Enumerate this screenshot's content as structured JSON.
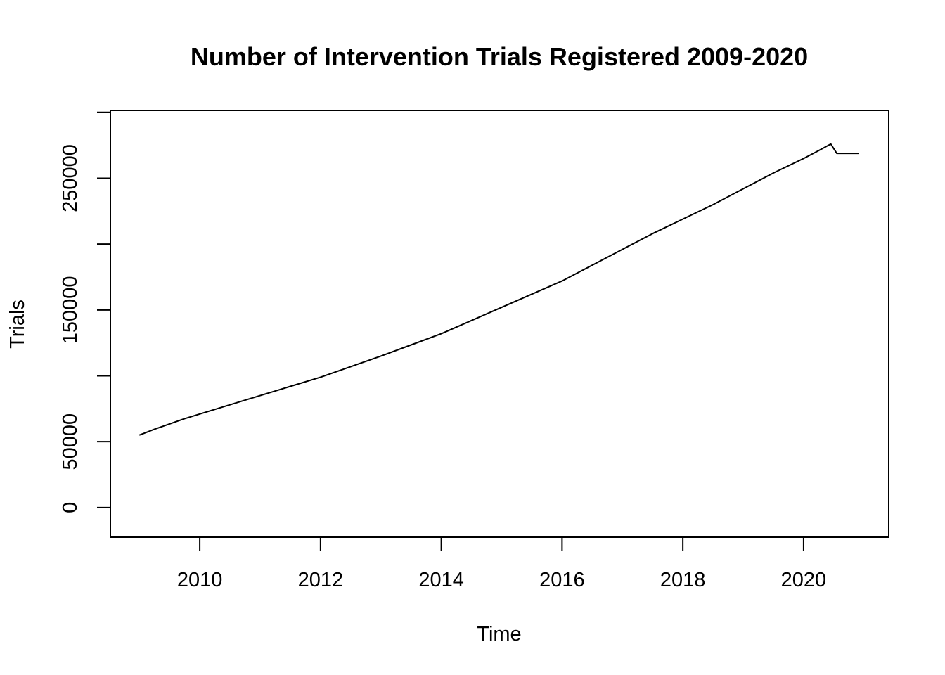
{
  "chart_data": {
    "type": "line",
    "title": "Number of Intervention Trials Registered 2009-2020",
    "xlabel": "Time",
    "ylabel": "Trials",
    "xlim": [
      2008.52,
      2021.41
    ],
    "ylim": [
      -22500,
      301500
    ],
    "x_ticks": [
      2010,
      2012,
      2014,
      2016,
      2018,
      2020
    ],
    "y_ticks": [
      0,
      50000,
      100000,
      150000,
      200000,
      250000,
      300000
    ],
    "y_tick_labels": [
      "0",
      "50000",
      "",
      "150000",
      "",
      "250000",
      ""
    ],
    "grid": false,
    "legend": "none",
    "line_color": "#000000",
    "series": [
      {
        "x": [
          2009.0,
          2009.25,
          2009.5,
          2009.75,
          2010.0,
          2010.5,
          2011.0,
          2011.5,
          2012.0,
          2012.5,
          2013.0,
          2013.5,
          2014.0,
          2014.5,
          2015.0,
          2015.5,
          2016.0,
          2016.5,
          2017.0,
          2017.5,
          2018.0,
          2018.5,
          2019.0,
          2019.5,
          2020.0,
          2020.25,
          2020.45,
          2020.55,
          2020.92
        ],
        "y": [
          55000,
          59500,
          63500,
          67500,
          71000,
          78000,
          85000,
          92000,
          99000,
          107000,
          115000,
          123500,
          132000,
          142000,
          152000,
          162000,
          172000,
          184000,
          196000,
          208000,
          219000,
          230000,
          242000,
          254000,
          265000,
          271000,
          276000,
          268900,
          268900
        ]
      }
    ]
  }
}
